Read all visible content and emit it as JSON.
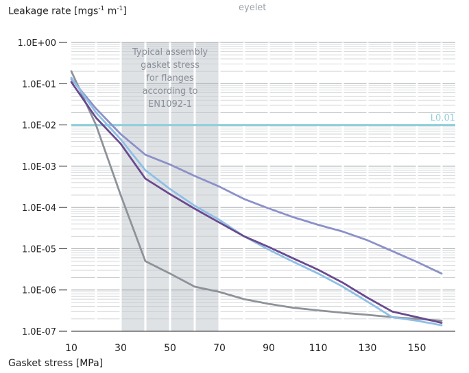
{
  "chart_data": {
    "type": "line",
    "subtitle": "eyelet",
    "ylabel": "Leakage rate [mgs",
    "ylabel_sup1": "-1",
    "ylabel_mid": " m",
    "ylabel_sup2": "-1",
    "ylabel_end": "]",
    "xlabel": "Gasket stress [MPa]",
    "y_scale": "log",
    "ylim": [
      1e-07,
      1
    ],
    "xlim": [
      10,
      163
    ],
    "y_ticks": [
      {
        "value": 1,
        "label": "1.0E+00"
      },
      {
        "value": 0.1,
        "label": "1.0E-01"
      },
      {
        "value": 0.01,
        "label": "1.0E-02"
      },
      {
        "value": 0.001,
        "label": "1.0E-03"
      },
      {
        "value": 0.0001,
        "label": "1.0E-04"
      },
      {
        "value": 1e-05,
        "label": "1.0E-05"
      },
      {
        "value": 1e-06,
        "label": "1.0E-06"
      },
      {
        "value": 1e-07,
        "label": "1.0E-07"
      }
    ],
    "x_ticks": [
      10,
      30,
      50,
      70,
      90,
      110,
      130,
      150
    ],
    "grid": true,
    "band": {
      "x_range": [
        30,
        70
      ],
      "label_lines": [
        "Typical assembly",
        "gasket stress",
        "for flanges",
        "according to",
        "EN1092-1"
      ],
      "color": "#dfe2e5"
    },
    "reference_line": {
      "y": 0.01,
      "label": "L0.01",
      "color": "#8fcfda"
    },
    "series": [
      {
        "color": "#8e9299",
        "x": [
          10,
          20,
          30,
          40,
          50,
          60,
          70,
          80,
          90,
          100,
          110,
          120,
          130,
          140,
          150,
          160
        ],
        "y": [
          0.2,
          0.01,
          0.0002,
          5e-06,
          2.5e-06,
          1.2e-06,
          9e-07,
          6e-07,
          4.6e-07,
          3.7e-07,
          3.2e-07,
          2.8e-07,
          2.5e-07,
          2.2e-07,
          2e-07,
          1.8e-07
        ]
      },
      {
        "color": "#8b91c8",
        "x": [
          10,
          20,
          30,
          40,
          50,
          60,
          70,
          80,
          90,
          100,
          110,
          120,
          130,
          140,
          150,
          160
        ],
        "y": [
          0.13,
          0.025,
          0.006,
          0.0019,
          0.0011,
          0.00058,
          0.00032,
          0.00016,
          9.5e-05,
          5.8e-05,
          3.8e-05,
          2.6e-05,
          1.6e-05,
          8.8e-06,
          4.8e-06,
          2.5e-06
        ]
      },
      {
        "color": "#8ebfe6",
        "x": [
          10,
          20,
          30,
          40,
          50,
          60,
          70,
          80,
          90,
          100,
          110,
          120,
          130,
          140,
          150,
          160
        ],
        "y": [
          0.14,
          0.02,
          0.0045,
          0.0008,
          0.00028,
          0.00011,
          5e-05,
          2e-05,
          9.5e-06,
          4.8e-06,
          2.5e-06,
          1.2e-06,
          5.2e-07,
          2.2e-07,
          1.8e-07,
          1.4e-07
        ]
      },
      {
        "color": "#6a4a8f",
        "x": [
          10,
          20,
          30,
          40,
          50,
          60,
          70,
          80,
          90,
          100,
          110,
          120,
          130,
          140,
          150,
          160
        ],
        "y": [
          0.11,
          0.015,
          0.0035,
          0.0005,
          0.00021,
          9.3e-05,
          4.3e-05,
          2e-05,
          1.1e-05,
          5.8e-06,
          3.1e-06,
          1.5e-06,
          6.5e-07,
          3e-07,
          2.2e-07,
          1.6e-07
        ]
      }
    ]
  }
}
